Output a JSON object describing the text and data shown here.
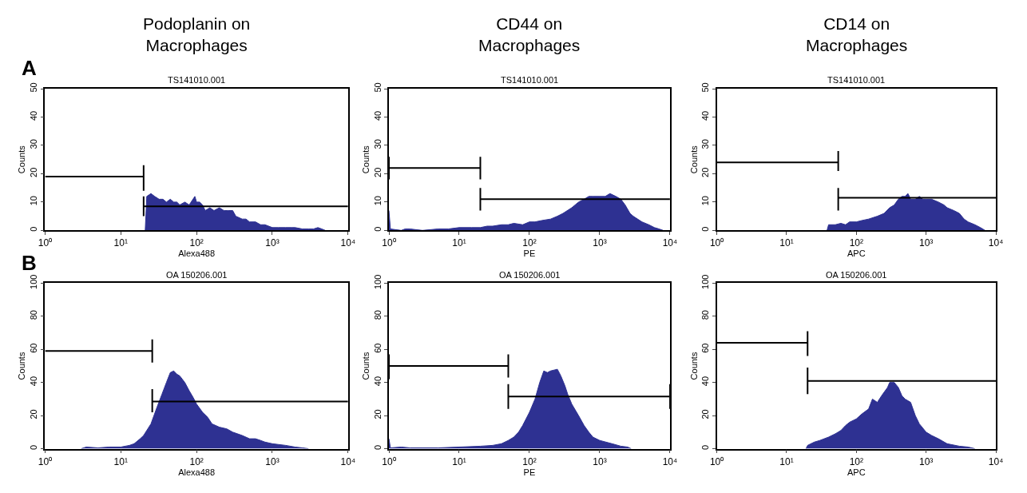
{
  "chart_data": [
    {
      "type": "area",
      "title": "Podoplanin on\nMacrophages",
      "subtitle": "TS141010.001",
      "xlabel": "Alexa488",
      "ylabel": "Counts",
      "log": "x",
      "annotations": [
        "A"
      ],
      "xlim": [
        1,
        10000
      ],
      "xticks": [
        {
          "value": 1,
          "label": "10⁰"
        },
        {
          "value": 10,
          "label": "10¹"
        },
        {
          "value": 100,
          "label": "10²"
        },
        {
          "value": 1000,
          "label": "10³"
        },
        {
          "value": 10000,
          "label": "10⁴"
        }
      ],
      "ylim": [
        0,
        50
      ],
      "yticks": [
        0,
        10,
        20,
        30,
        40,
        50
      ],
      "series": [
        {
          "color": "#2e3192",
          "x": [
            21,
            22,
            25,
            28,
            32,
            36,
            40,
            45,
            50,
            55,
            60,
            70,
            80,
            95,
            100,
            110,
            120,
            130,
            150,
            170,
            200,
            230,
            260,
            300,
            330,
            400,
            450,
            500,
            600,
            700,
            800,
            1000,
            1200,
            1500,
            1800,
            2000,
            2500,
            3000,
            3500,
            4000,
            4500,
            5000
          ],
          "values": [
            0,
            12,
            13,
            12,
            11,
            11,
            10,
            11,
            10,
            10,
            9,
            10,
            9,
            12,
            10,
            10,
            9,
            7,
            8,
            7,
            8,
            7,
            7,
            7,
            5,
            4,
            4,
            3,
            3,
            2,
            2,
            1,
            1,
            1,
            1,
            1,
            0.5,
            0.5,
            0.5,
            1,
            0.5,
            0
          ]
        },
        {
          "type": "line",
          "color": "#000000",
          "x": [
            1,
            20,
            20,
            20
          ],
          "values": [
            19,
            19,
            23,
            14
          ]
        },
        {
          "type": "line",
          "color": "#000000",
          "x": [
            20,
            20,
            20,
            10000
          ],
          "values": [
            12,
            5,
            8.5,
            8.5
          ]
        }
      ]
    },
    {
      "type": "area",
      "title": "CD44 on\nMacrophages",
      "subtitle": "TS141010.001",
      "xlabel": "PE",
      "ylabel": "Counts",
      "log": "x",
      "xlim": [
        1,
        10000
      ],
      "xticks": [
        {
          "value": 1,
          "label": "10⁰"
        },
        {
          "value": 10,
          "label": "10¹"
        },
        {
          "value": 100,
          "label": "10²"
        },
        {
          "value": 1000,
          "label": "10³"
        },
        {
          "value": 10000,
          "label": "10⁴"
        }
      ],
      "ylim": [
        0,
        50
      ],
      "yticks": [
        0,
        10,
        20,
        30,
        40,
        50
      ],
      "series": [
        {
          "color": "#2e3192",
          "x": [
            1,
            1.05,
            1.5,
            1.7,
            2,
            3,
            5,
            7,
            10,
            15,
            20,
            25,
            30,
            40,
            50,
            60,
            80,
            100,
            120,
            150,
            200,
            250,
            300,
            400,
            500,
            600,
            700,
            800,
            1000,
            1200,
            1400,
            1700,
            2000,
            2300,
            2700,
            3000,
            4000,
            5000,
            6000,
            7000,
            8000
          ],
          "values": [
            7,
            0.5,
            0,
            0.5,
            0.5,
            0,
            0.5,
            0.5,
            1,
            1,
            1,
            1.5,
            1.5,
            2,
            2,
            2.5,
            2,
            3,
            3,
            3.5,
            4,
            5,
            6,
            8,
            10,
            11,
            12,
            12,
            12,
            12,
            13,
            12,
            11,
            9,
            6,
            5,
            3,
            2,
            1,
            0.5,
            0
          ]
        },
        {
          "type": "line",
          "color": "#000000",
          "x": [
            1,
            1,
            1,
            20,
            20,
            20
          ],
          "values": [
            26,
            18,
            22,
            22,
            26,
            18
          ]
        },
        {
          "type": "line",
          "color": "#000000",
          "x": [
            20,
            20,
            20,
            10000
          ],
          "values": [
            15,
            7,
            11,
            11
          ]
        }
      ]
    },
    {
      "type": "area",
      "title": "CD14 on\nMacrophages",
      "subtitle": "TS141010.001",
      "xlabel": "APC",
      "ylabel": "Counts",
      "log": "x",
      "xlim": [
        1,
        10000
      ],
      "xticks": [
        {
          "value": 1,
          "label": "10⁰"
        },
        {
          "value": 10,
          "label": "10¹"
        },
        {
          "value": 100,
          "label": "10²"
        },
        {
          "value": 1000,
          "label": "10³"
        },
        {
          "value": 10000,
          "label": "10⁴"
        }
      ],
      "ylim": [
        0,
        50
      ],
      "yticks": [
        0,
        10,
        20,
        30,
        40,
        50
      ],
      "series": [
        {
          "color": "#2e3192",
          "x": [
            38,
            40,
            50,
            60,
            70,
            80,
            100,
            120,
            150,
            200,
            250,
            300,
            350,
            400,
            450,
            500,
            550,
            600,
            700,
            800,
            900,
            1000,
            1200,
            1500,
            1800,
            2000,
            2500,
            3000,
            3500,
            4000,
            5000,
            6000,
            7000
          ],
          "values": [
            0,
            2,
            2,
            2.5,
            2,
            3,
            3,
            3.5,
            4,
            5,
            6,
            8,
            9,
            11,
            12,
            12,
            13,
            11,
            11,
            12,
            11,
            11,
            11,
            10,
            9,
            8,
            7,
            6,
            4,
            3,
            2,
            1,
            0
          ]
        },
        {
          "type": "line",
          "color": "#000000",
          "x": [
            1,
            55,
            55,
            55
          ],
          "values": [
            24,
            24,
            28,
            21
          ]
        },
        {
          "type": "line",
          "color": "#000000",
          "x": [
            55,
            55,
            55,
            10000
          ],
          "values": [
            15,
            7,
            11.5,
            11.5
          ]
        }
      ]
    },
    {
      "type": "area",
      "title": "OA 150206.001",
      "xlabel": "Alexa488",
      "ylabel": "Counts",
      "log": "x",
      "annotations": [
        "B"
      ],
      "xlim": [
        1,
        10000
      ],
      "xticks": [
        {
          "value": 1,
          "label": "10⁰"
        },
        {
          "value": 10,
          "label": "10¹"
        },
        {
          "value": 100,
          "label": "10²"
        },
        {
          "value": 1000,
          "label": "10³"
        },
        {
          "value": 10000,
          "label": "10⁴"
        }
      ],
      "ylim": [
        0,
        100
      ],
      "yticks": [
        0,
        20,
        40,
        60,
        80,
        100
      ],
      "series": [
        {
          "color": "#2e3192",
          "x": [
            3,
            3.5,
            5,
            7,
            10,
            13,
            15,
            18,
            20,
            25,
            30,
            35,
            40,
            45,
            50,
            55,
            60,
            70,
            80,
            90,
            100,
            120,
            140,
            160,
            200,
            250,
            300,
            400,
            500,
            600,
            700,
            800,
            1000,
            1500,
            2000,
            2500,
            3000
          ],
          "values": [
            0,
            1,
            0.5,
            1,
            1,
            2,
            3,
            6,
            8,
            15,
            25,
            33,
            40,
            46,
            47,
            45,
            44,
            40,
            35,
            31,
            27,
            22,
            19,
            15,
            13,
            12,
            10,
            8,
            6,
            6,
            5,
            4,
            3,
            2,
            1,
            0.5,
            0
          ]
        },
        {
          "type": "line",
          "color": "#000000",
          "x": [
            1,
            26,
            26,
            26
          ],
          "values": [
            59,
            59,
            66,
            52
          ]
        },
        {
          "type": "line",
          "color": "#000000",
          "x": [
            26,
            26,
            26,
            10000
          ],
          "values": [
            36,
            22,
            28.5,
            28.5
          ]
        }
      ]
    },
    {
      "type": "area",
      "title": "OA 150206.001",
      "xlabel": "PE",
      "ylabel": "Counts",
      "log": "x",
      "xlim": [
        1,
        10000
      ],
      "xticks": [
        {
          "value": 1,
          "label": "10⁰"
        },
        {
          "value": 10,
          "label": "10¹"
        },
        {
          "value": 100,
          "label": "10²"
        },
        {
          "value": 1000,
          "label": "10³"
        },
        {
          "value": 10000,
          "label": "10⁴"
        }
      ],
      "ylim": [
        0,
        100
      ],
      "yticks": [
        0,
        20,
        40,
        60,
        80,
        100
      ],
      "series": [
        {
          "color": "#2e3192",
          "x": [
            1,
            1.05,
            1.5,
            2,
            3,
            5,
            10,
            20,
            30,
            40,
            50,
            60,
            70,
            80,
            100,
            120,
            140,
            160,
            180,
            200,
            250,
            280,
            320,
            350,
            400,
            500,
            600,
            700,
            800,
            1000,
            1500,
            2000,
            2500,
            2800
          ],
          "values": [
            6,
            0.5,
            1,
            0.5,
            0.5,
            0.5,
            1,
            1.5,
            2,
            3,
            5,
            7,
            10,
            14,
            22,
            30,
            40,
            47,
            46,
            47,
            48,
            44,
            38,
            33,
            27,
            20,
            14,
            10,
            7,
            5,
            3,
            1.5,
            1,
            0
          ]
        },
        {
          "type": "line",
          "color": "#000000",
          "x": [
            1,
            1,
            1,
            50,
            50,
            50
          ],
          "values": [
            57,
            42,
            50,
            50,
            57,
            43
          ]
        },
        {
          "type": "line",
          "color": "#000000",
          "x": [
            50,
            50,
            50,
            10000,
            10000,
            10000
          ],
          "values": [
            39,
            24,
            31.5,
            31.5,
            39,
            24
          ]
        }
      ]
    },
    {
      "type": "area",
      "title": "OA 150206.001",
      "xlabel": "APC",
      "ylabel": "Counts",
      "log": "x",
      "xlim": [
        1,
        10000
      ],
      "xticks": [
        {
          "value": 1,
          "label": "10⁰"
        },
        {
          "value": 10,
          "label": "10¹"
        },
        {
          "value": 100,
          "label": "10²"
        },
        {
          "value": 1000,
          "label": "10³"
        },
        {
          "value": 10000,
          "label": "10⁴"
        }
      ],
      "ylim": [
        0,
        100
      ],
      "yticks": [
        0,
        20,
        40,
        60,
        80,
        100
      ],
      "series": [
        {
          "color": "#2e3192",
          "x": [
            19,
            20,
            25,
            30,
            40,
            50,
            60,
            70,
            80,
            100,
            120,
            150,
            170,
            200,
            230,
            280,
            300,
            350,
            400,
            450,
            500,
            600,
            700,
            800,
            1000,
            1200,
            1500,
            2000,
            3000,
            4000,
            5000
          ],
          "values": [
            0,
            2,
            4,
            5,
            7,
            9,
            11,
            14,
            16,
            18,
            21,
            24,
            30,
            28,
            32,
            37,
            40,
            40,
            37,
            32,
            30,
            28,
            20,
            15,
            10,
            8,
            6,
            3,
            1.5,
            1,
            0
          ]
        },
        {
          "type": "line",
          "color": "#000000",
          "x": [
            1,
            20,
            20,
            20
          ],
          "values": [
            64,
            64,
            71,
            56
          ]
        },
        {
          "type": "line",
          "color": "#000000",
          "x": [
            20,
            20,
            20,
            10000
          ],
          "values": [
            49,
            33,
            41,
            41
          ]
        }
      ]
    }
  ]
}
